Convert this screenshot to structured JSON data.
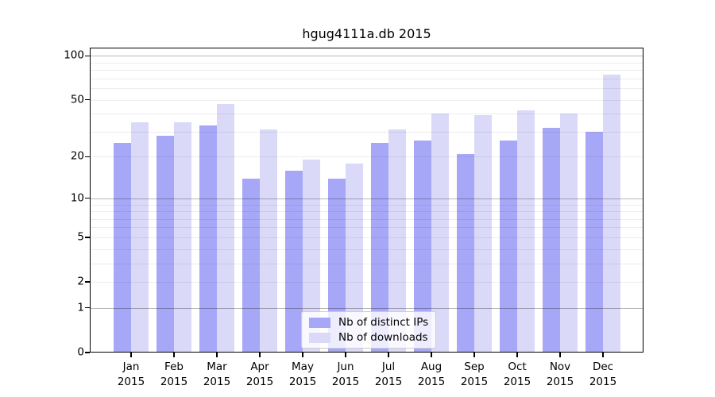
{
  "title": "hgug4111a.db 2015",
  "chart_data": {
    "type": "bar",
    "title": "hgug4111a.db 2015",
    "categories": [
      "Jan 2015",
      "Feb 2015",
      "Mar 2015",
      "Apr 2015",
      "May 2015",
      "Jun 2015",
      "Jul 2015",
      "Aug 2015",
      "Sep 2015",
      "Oct 2015",
      "Nov 2015",
      "Dec 2015"
    ],
    "series": [
      {
        "name": "Nb of distinct IPs",
        "color": "#a7a7f7",
        "values": [
          25,
          28,
          33,
          14,
          16,
          14,
          25,
          26,
          21,
          26,
          32,
          30
        ]
      },
      {
        "name": "Nb of downloads",
        "color": "#dadaf8",
        "values": [
          35,
          35,
          47,
          31,
          19,
          18,
          31,
          40,
          39,
          42,
          40,
          74
        ]
      }
    ],
    "xlabel": "",
    "ylabel": "",
    "yscale": "log1p",
    "ylim": [
      0,
      100
    ],
    "yticks": [
      100,
      50,
      20,
      10,
      5,
      2,
      1,
      0
    ],
    "minor_gridlines": [
      2,
      3,
      4,
      5,
      6,
      7,
      8,
      9,
      20,
      30,
      40,
      50,
      60,
      70,
      80,
      90
    ],
    "major_gridlines": [
      1,
      10,
      100
    ],
    "grid": true,
    "legend_position": "lower center"
  },
  "colors": {
    "background": "#ffffff",
    "bar_distinct_ips": "#a7a7f7",
    "bar_downloads": "#dadaf8",
    "axis": "#000000",
    "legend_border": "#cccccc"
  }
}
